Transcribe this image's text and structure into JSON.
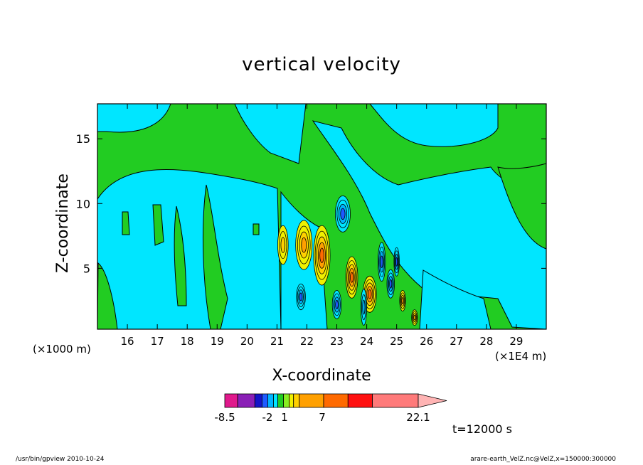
{
  "chart_data": {
    "type": "heatmap",
    "title": "vertical velocity",
    "xlabel": "X-coordinate",
    "ylabel": "Z-coordinate",
    "x_unit_left": "(×1000 m)",
    "x_unit_right": "(×1E4 m)",
    "x_ticks": [
      "16",
      "17",
      "18",
      "19",
      "20",
      "21",
      "22",
      "23",
      "24",
      "25",
      "26",
      "27",
      "28",
      "29"
    ],
    "x_tick_values": [
      16,
      17,
      18,
      19,
      20,
      21,
      22,
      23,
      24,
      25,
      26,
      27,
      28,
      29
    ],
    "xlim": [
      15,
      30
    ],
    "y_ticks": [
      "5",
      "10",
      "15"
    ],
    "y_tick_values": [
      5,
      10,
      15
    ],
    "ylim": [
      0.3,
      17.7
    ],
    "time_label": "t=12000 s",
    "colorbar": {
      "labels": [
        "-8.5",
        "-2",
        "1",
        "7",
        "22.1"
      ],
      "label_positions": [
        -8.5,
        -2,
        1,
        7,
        22.1
      ],
      "levels": [
        -8.5,
        -6,
        -4,
        -3,
        -2,
        -1,
        0,
        1,
        2,
        3,
        4,
        7,
        10,
        13,
        22.1
      ],
      "colors": [
        "#e0198c",
        "#8a1fb6",
        "#1414c8",
        "#1e5aff",
        "#00b4ff",
        "#00e6ff",
        "#22cc22",
        "#88ee22",
        "#f0f000",
        "#ffd000",
        "#ffa000",
        "#ff6a00",
        "#ff1010",
        "#ff7a7a",
        "#ffb4b4"
      ]
    },
    "background_levels": {
      "negative_small": "#00e6ff",
      "positive_small": "#22cc22"
    },
    "cells": [
      {
        "x": 21.9,
        "z": 6.8,
        "w": 0.55,
        "h": 3.8,
        "level": 3
      },
      {
        "x": 22.5,
        "z": 6.0,
        "w": 0.55,
        "h": 4.6,
        "level": 4
      },
      {
        "x": 23.5,
        "z": 4.3,
        "w": 0.4,
        "h": 3.2,
        "level": 4
      },
      {
        "x": 24.1,
        "z": 3.0,
        "w": 0.45,
        "h": 2.8,
        "level": 4
      },
      {
        "x": 21.2,
        "z": 6.8,
        "w": 0.35,
        "h": 3.0,
        "level": 2
      },
      {
        "x": 23.2,
        "z": 9.2,
        "w": 0.5,
        "h": 2.8,
        "level": -3
      },
      {
        "x": 24.5,
        "z": 5.5,
        "w": 0.25,
        "h": 3.0,
        "level": -3
      },
      {
        "x": 21.8,
        "z": 2.8,
        "w": 0.3,
        "h": 2.0,
        "level": -3
      },
      {
        "x": 23.0,
        "z": 2.2,
        "w": 0.3,
        "h": 2.2,
        "level": -3
      },
      {
        "x": 24.8,
        "z": 3.8,
        "w": 0.25,
        "h": 2.2,
        "level": -3
      },
      {
        "x": 25.0,
        "z": 5.5,
        "w": 0.18,
        "h": 2.2,
        "level": -3
      },
      {
        "x": 23.9,
        "z": 2.0,
        "w": 0.2,
        "h": 2.8,
        "level": -2
      },
      {
        "x": 25.2,
        "z": 2.5,
        "w": 0.2,
        "h": 1.6,
        "level": 3
      },
      {
        "x": 25.6,
        "z": 1.2,
        "w": 0.2,
        "h": 1.2,
        "level": 3
      }
    ]
  },
  "footer": {
    "left": "/usr/bin/gpview   2010-10-24",
    "right": "arare-earth_VelZ.nc@VelZ,x=150000:300000"
  }
}
